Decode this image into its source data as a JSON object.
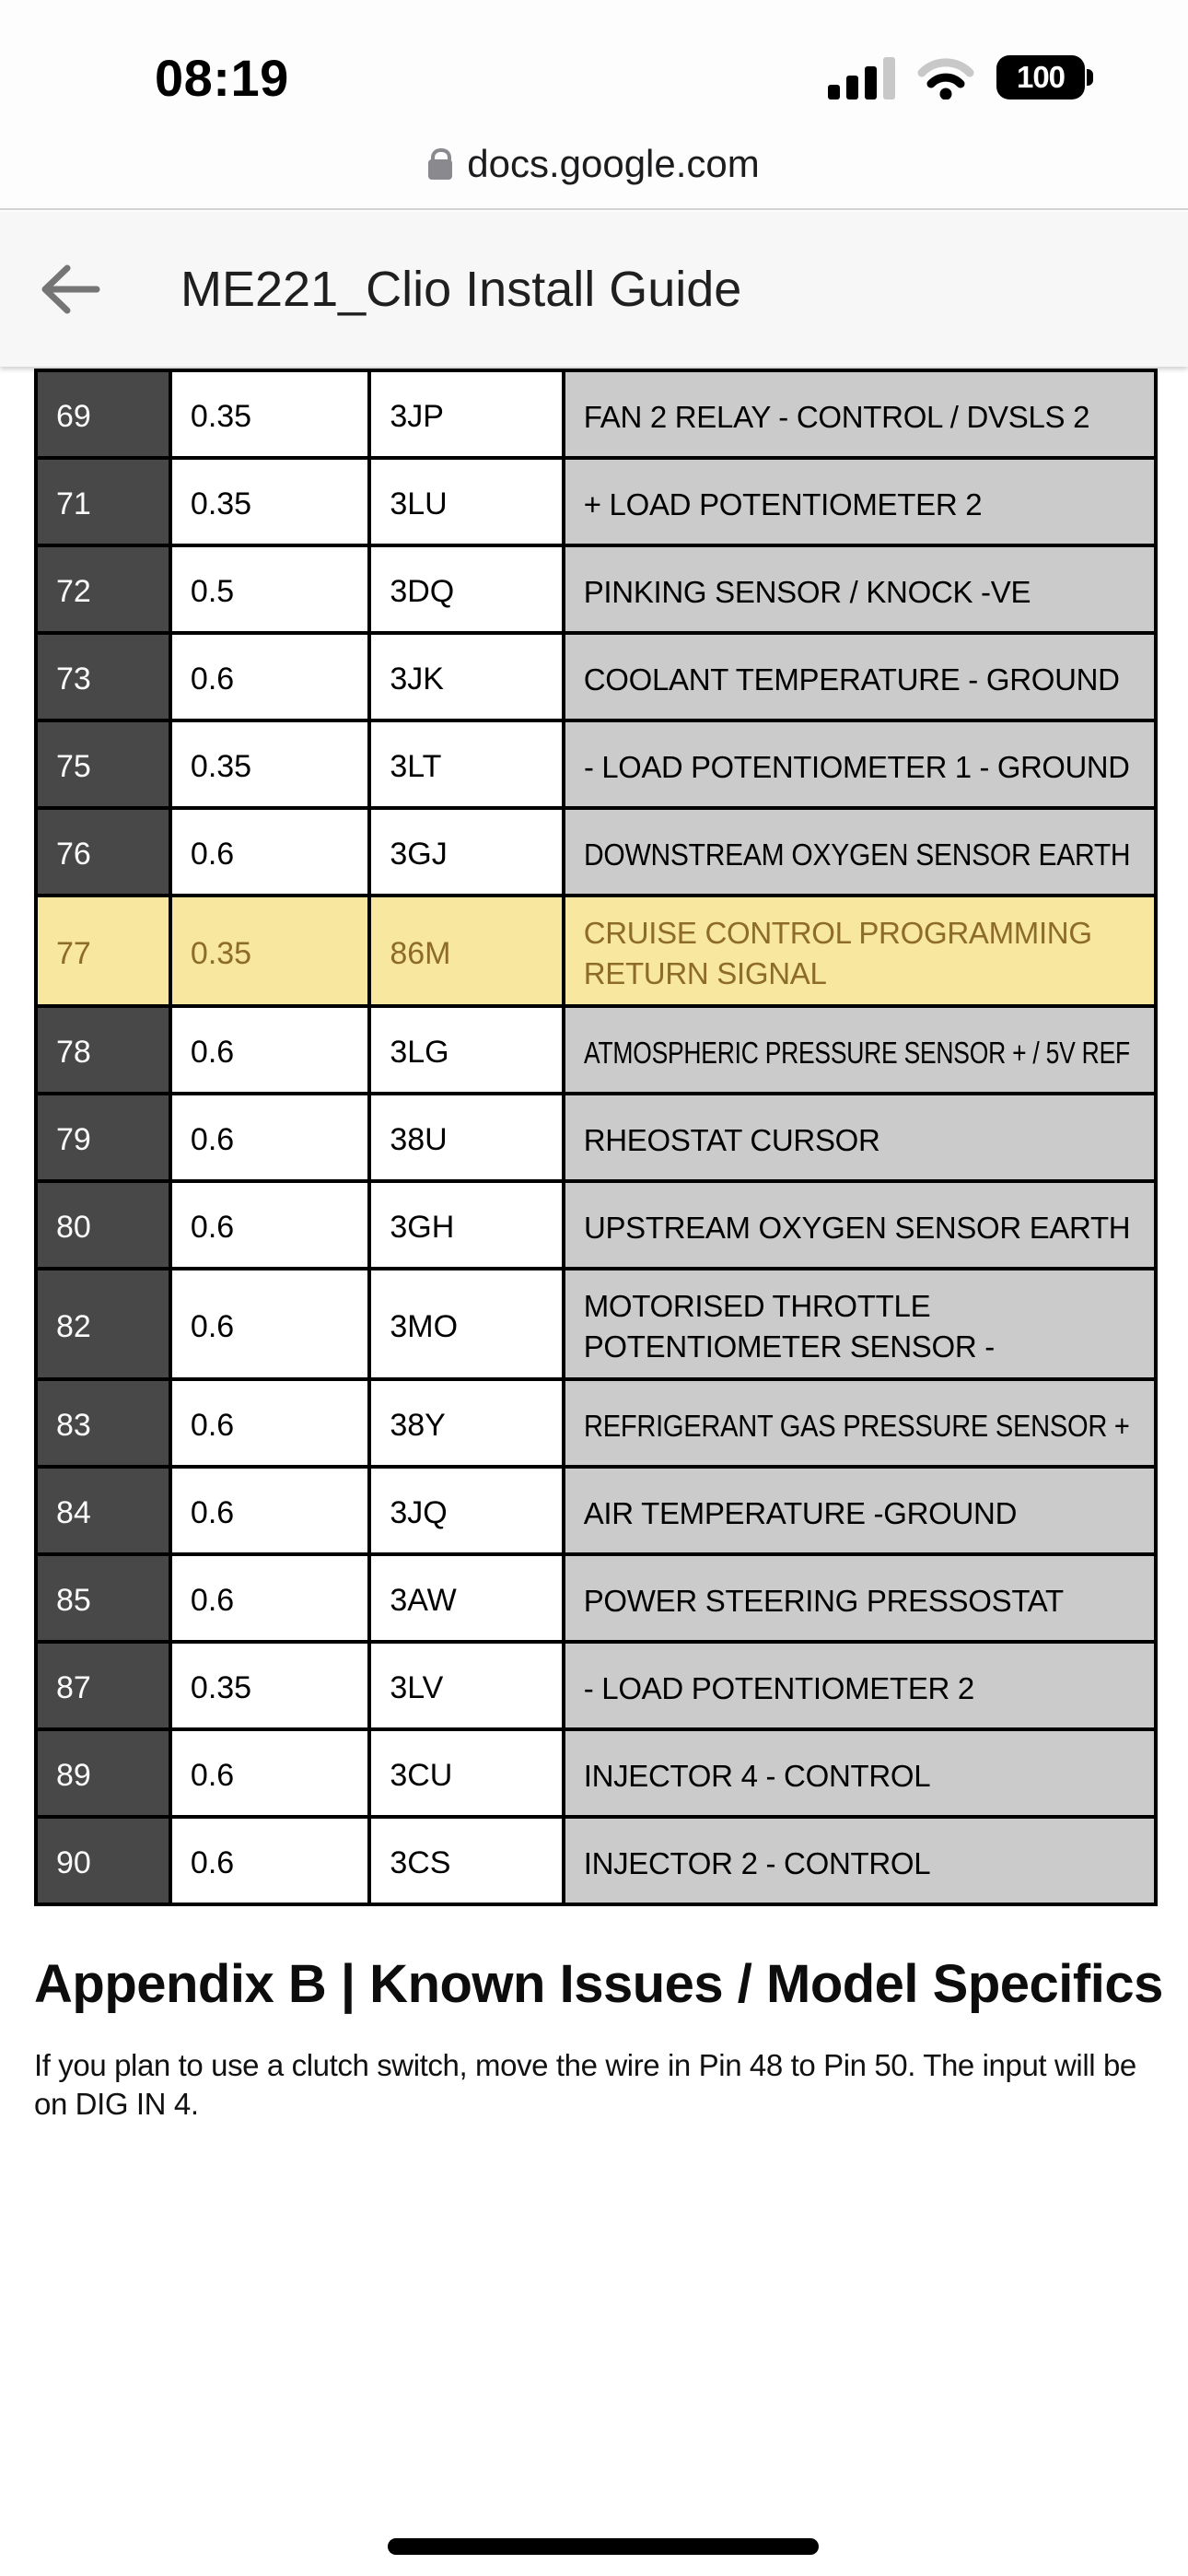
{
  "status_bar": {
    "time": "08:19",
    "battery_level": "100",
    "signal_bars_total": 4,
    "signal_bars_filled": 3
  },
  "url_bar": {
    "domain": "docs.google.com"
  },
  "doc_header": {
    "title": "ME221_Clio Install Guide"
  },
  "table": {
    "columns": [
      "pin",
      "wire_size",
      "wire_code",
      "description"
    ],
    "rows": [
      {
        "pin": "69",
        "wire_size": "0.35",
        "wire_code": "3JP",
        "description": "FAN 2 RELAY - CONTROL / DVSLS 2",
        "highlighted": false
      },
      {
        "pin": "71",
        "wire_size": "0.35",
        "wire_code": "3LU",
        "description": "+ LOAD POTENTIOMETER 2",
        "highlighted": false
      },
      {
        "pin": "72",
        "wire_size": "0.5",
        "wire_code": "3DQ",
        "description": "PINKING SENSOR / KNOCK -VE",
        "highlighted": false
      },
      {
        "pin": "73",
        "wire_size": "0.6",
        "wire_code": "3JK",
        "description": "COOLANT TEMPERATURE - GROUND",
        "highlighted": false
      },
      {
        "pin": "75",
        "wire_size": "0.35",
        "wire_code": "3LT",
        "description": "- LOAD POTENTIOMETER 1 - GROUND",
        "highlighted": false
      },
      {
        "pin": "76",
        "wire_size": "0.6",
        "wire_code": "3GJ",
        "description": "DOWNSTREAM OXYGEN SENSOR EARTH",
        "highlighted": false
      },
      {
        "pin": "77",
        "wire_size": "0.35",
        "wire_code": "86M",
        "description": "CRUISE CONTROL PROGRAMMING RETURN SIGNAL",
        "highlighted": true
      },
      {
        "pin": "78",
        "wire_size": "0.6",
        "wire_code": "3LG",
        "description": "ATMOSPHERIC PRESSURE SENSOR + / 5V REF",
        "highlighted": false
      },
      {
        "pin": "79",
        "wire_size": "0.6",
        "wire_code": "38U",
        "description": "RHEOSTAT CURSOR",
        "highlighted": false
      },
      {
        "pin": "80",
        "wire_size": "0.6",
        "wire_code": "3GH",
        "description": "UPSTREAM OXYGEN SENSOR EARTH",
        "highlighted": false
      },
      {
        "pin": "82",
        "wire_size": "0.6",
        "wire_code": "3MO",
        "description": "MOTORISED THROTTLE POTENTIOMETER SENSOR -",
        "highlighted": false
      },
      {
        "pin": "83",
        "wire_size": "0.6",
        "wire_code": "38Y",
        "description": "REFRIGERANT GAS PRESSURE SENSOR +",
        "highlighted": false
      },
      {
        "pin": "84",
        "wire_size": "0.6",
        "wire_code": "3JQ",
        "description": "AIR TEMPERATURE -GROUND",
        "highlighted": false
      },
      {
        "pin": "85",
        "wire_size": "0.6",
        "wire_code": "3AW",
        "description": "POWER STEERING PRESSOSTAT",
        "highlighted": false
      },
      {
        "pin": "87",
        "wire_size": "0.35",
        "wire_code": "3LV",
        "description": "- LOAD POTENTIOMETER 2",
        "highlighted": false
      },
      {
        "pin": "89",
        "wire_size": "0.6",
        "wire_code": "3CU",
        "description": "INJECTOR 4 - CONTROL",
        "highlighted": false
      },
      {
        "pin": "90",
        "wire_size": "0.6",
        "wire_code": "3CS",
        "description": "INJECTOR 2 - CONTROL",
        "highlighted": false
      }
    ]
  },
  "appendix": {
    "heading": "Appendix B | Known Issues / Model Specifics",
    "body": "If you plan to use a clutch switch, move the wire in Pin 48 to Pin 50. The input will be on DIG IN 4."
  },
  "colors": {
    "highlight_bg": "#f8e79e",
    "highlight_text": "#8d6b29",
    "pin_cell_bg": "#484848",
    "description_cell_bg": "#cbcbcb",
    "header_bg": "#f7f7f7"
  }
}
